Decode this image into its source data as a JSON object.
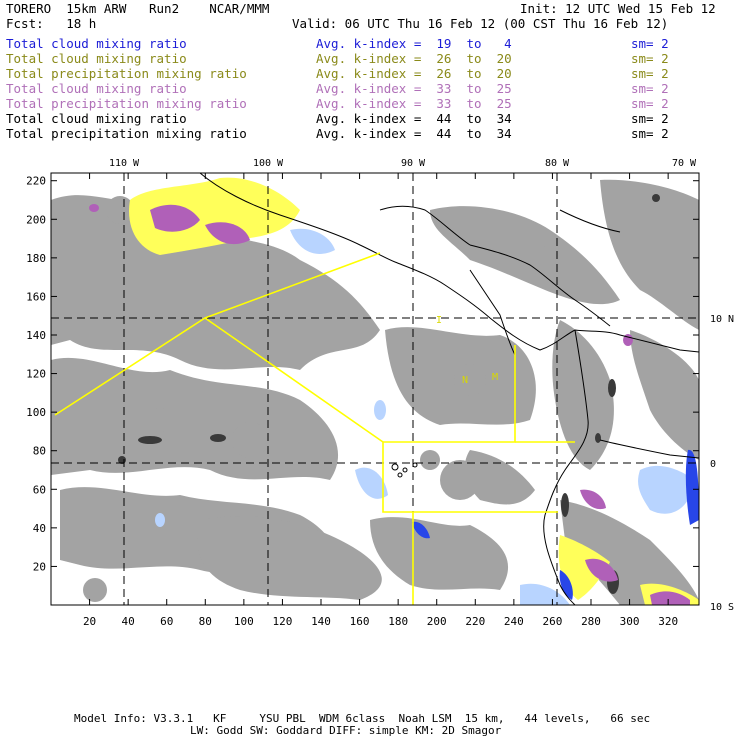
{
  "header": {
    "model": "TORERO  15km ARW   Run2    NCAR/MMM",
    "init": "Init: 12 UTC Wed 15 Feb 12",
    "fcst": "Fcst:   18 h",
    "valid": "Valid: 06 UTC Thu 16 Feb 12 (00 CST Thu 16 Feb 12)"
  },
  "legend": [
    {
      "label": "Total cloud mixing ratio",
      "kindex": "Avg. k-index =  19  to   4",
      "sm": "sm= 2",
      "color": "#1c1cd6"
    },
    {
      "label": "Total cloud mixing ratio",
      "kindex": "Avg. k-index =  26  to  20",
      "sm": "sm= 2",
      "color": "#8a8a1a"
    },
    {
      "label": "Total precipitation mixing ratio",
      "kindex": "Avg. k-index =  26  to  20",
      "sm": "sm= 2",
      "color": "#8a8a1a"
    },
    {
      "label": "Total cloud mixing ratio",
      "kindex": "Avg. k-index =  33  to  25",
      "sm": "sm= 2",
      "color": "#b070b8"
    },
    {
      "label": "Total precipitation mixing ratio",
      "kindex": "Avg. k-index =  33  to  25",
      "sm": "sm= 2",
      "color": "#b070b8"
    },
    {
      "label": "Total cloud mixing ratio",
      "kindex": "Avg. k-index =  44  to  34",
      "sm": "sm= 2",
      "color": "#000000"
    },
    {
      "label": "Total precipitation mixing ratio",
      "kindex": "Avg. k-index =  44  to  34",
      "sm": "sm= 2",
      "color": "#000000"
    }
  ],
  "map": {
    "lon_labels": [
      "110 W",
      "100 W",
      "90 W",
      "80 W",
      "70 W"
    ],
    "lat_labels": [
      "10 N",
      "0",
      "10 S"
    ],
    "x_ticks": [
      "20",
      "40",
      "60",
      "80",
      "100",
      "120",
      "140",
      "160",
      "180",
      "200",
      "220",
      "240",
      "260",
      "280",
      "300",
      "320"
    ],
    "y_ticks": [
      "20",
      "40",
      "60",
      "80",
      "100",
      "120",
      "140",
      "160",
      "180",
      "200",
      "220"
    ],
    "colors": {
      "cloud_gray": "#a0a0a0",
      "yellow": "#ffff5a",
      "purple": "#b060b8",
      "blue": "#3050ff",
      "light_blue": "#b8d4ff",
      "boundary": "#ffff00"
    }
  },
  "footer": {
    "line1": "Model Info: V3.3.1   KF     YSU PBL  WDM 6class  Noah LSM  15 km,   44 levels,   66 sec",
    "line2": "LW: Godd SW: Goddard DIFF: simple KM: 2D Smagor"
  }
}
